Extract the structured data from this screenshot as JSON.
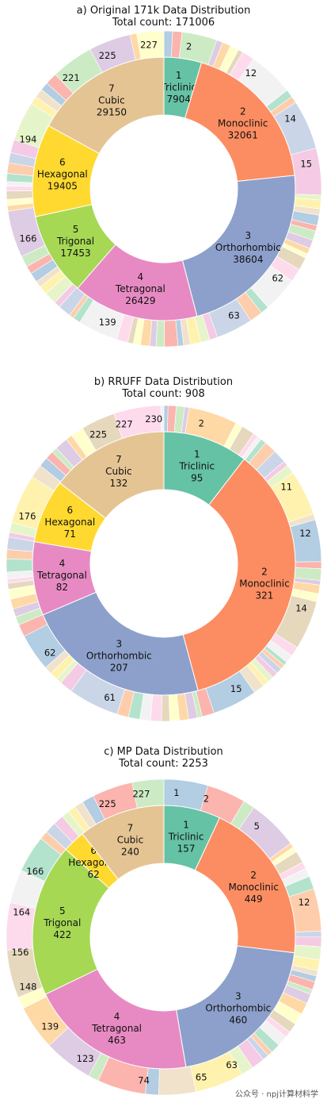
{
  "chart_data": [
    {
      "type": "pie",
      "title": "a) Original 171k Data Distribution",
      "subtitle": "Total count: 171006",
      "inner_ring": {
        "values": [
          7904,
          32061,
          38604,
          26429,
          17453,
          19405,
          29150
        ],
        "labels": [
          "1\nTriclinic\n7904",
          "2\nMonoclinic\n32061",
          "3\nOrthorhombic\n38604",
          "4\nTetragonal\n26429",
          "5\nTrigonal\n17453",
          "6\nHexagonal\n19405",
          "7\nCubic\n29150"
        ],
        "colors": [
          "#66c2a5",
          "#fc8d62",
          "#8da0cb",
          "#e78ac3",
          "#a6d854",
          "#ffd92f",
          "#e5c494"
        ]
      },
      "outer_ring_labels": [
        {
          "text": "2",
          "angle_deg": 10
        },
        {
          "text": "12",
          "angle_deg": 37
        },
        {
          "text": "14",
          "angle_deg": 61
        },
        {
          "text": "15",
          "angle_deg": 80
        },
        {
          "text": "62",
          "angle_deg": 128
        },
        {
          "text": "63",
          "angle_deg": 151
        },
        {
          "text": "139",
          "angle_deg": 203
        },
        {
          "text": "166",
          "angle_deg": 250
        },
        {
          "text": "194",
          "angle_deg": 290
        },
        {
          "text": "221",
          "angle_deg": 320
        },
        {
          "text": "225",
          "angle_deg": 337
        },
        {
          "text": "227",
          "angle_deg": 354
        }
      ]
    },
    {
      "type": "pie",
      "title": "b) RRUFF Data Distribution",
      "subtitle": "Total count: 908",
      "inner_ring": {
        "values": [
          95,
          321,
          207,
          82,
          71,
          132
        ],
        "labels": [
          "1\nTriclinic\n95",
          "2\nMonoclinic\n321",
          "3\nOrthorhombic\n207",
          "4\nTetragonal\n82",
          "6\nHexagonal\n71",
          "7\nCubic\n132"
        ],
        "colors": [
          "#66c2a5",
          "#fc8d62",
          "#8da0cb",
          "#e78ac3",
          "#ffd92f",
          "#e5c494"
        ]
      },
      "outer_ring_labels": [
        {
          "text": "2",
          "angle_deg": 15
        },
        {
          "text": "11",
          "angle_deg": 58
        },
        {
          "text": "12",
          "angle_deg": 78
        },
        {
          "text": "14",
          "angle_deg": 108
        },
        {
          "text": "15",
          "angle_deg": 150
        },
        {
          "text": "61",
          "angle_deg": 202
        },
        {
          "text": "62",
          "angle_deg": 232
        },
        {
          "text": "176",
          "angle_deg": 289
        },
        {
          "text": "225",
          "angle_deg": 333
        },
        {
          "text": "227",
          "angle_deg": 344
        },
        {
          "text": "230",
          "angle_deg": 356
        }
      ]
    },
    {
      "type": "pie",
      "title": "c) MP Data Distribution",
      "subtitle": "Total count: 2253",
      "inner_ring": {
        "values": [
          157,
          449,
          460,
          463,
          422,
          62,
          240
        ],
        "labels": [
          "1\nTriclinic\n157",
          "2\nMonoclinic\n449",
          "3\nOrthorhombic\n460",
          "4\nTetragonal\n463",
          "5\nTrigonal\n422",
          "6\nHexagonal\n62",
          "7\nCubic\n240"
        ],
        "colors": [
          "#66c2a5",
          "#fc8d62",
          "#8da0cb",
          "#e78ac3",
          "#a6d854",
          "#ffd92f",
          "#e5c494"
        ]
      },
      "outer_ring_labels": [
        {
          "text": "1",
          "angle_deg": 5
        },
        {
          "text": "2",
          "angle_deg": 17
        },
        {
          "text": "5",
          "angle_deg": 40
        },
        {
          "text": "12",
          "angle_deg": 76
        },
        {
          "text": "63",
          "angle_deg": 152
        },
        {
          "text": "65",
          "angle_deg": 165
        },
        {
          "text": "74",
          "angle_deg": 188
        },
        {
          "text": "123",
          "angle_deg": 213
        },
        {
          "text": "139",
          "angle_deg": 232
        },
        {
          "text": "148",
          "angle_deg": 250
        },
        {
          "text": "156",
          "angle_deg": 264
        },
        {
          "text": "164",
          "angle_deg": 280
        },
        {
          "text": "166",
          "angle_deg": 297
        },
        {
          "text": "225",
          "angle_deg": 337
        },
        {
          "text": "227",
          "angle_deg": 351
        }
      ]
    }
  ],
  "outer_palette": [
    "#b3cde3",
    "#fbb4ae",
    "#ccebc5",
    "#decbe4",
    "#fed9a6",
    "#ffffcc",
    "#e5d8bd",
    "#fddaec",
    "#f2f2f2",
    "#b3e2cd",
    "#fdcdac",
    "#cbd5e8",
    "#f4cae4",
    "#e6f5c9",
    "#fff2ae",
    "#f1e2cc"
  ],
  "watermark": "公众号 · npj计算材料学"
}
